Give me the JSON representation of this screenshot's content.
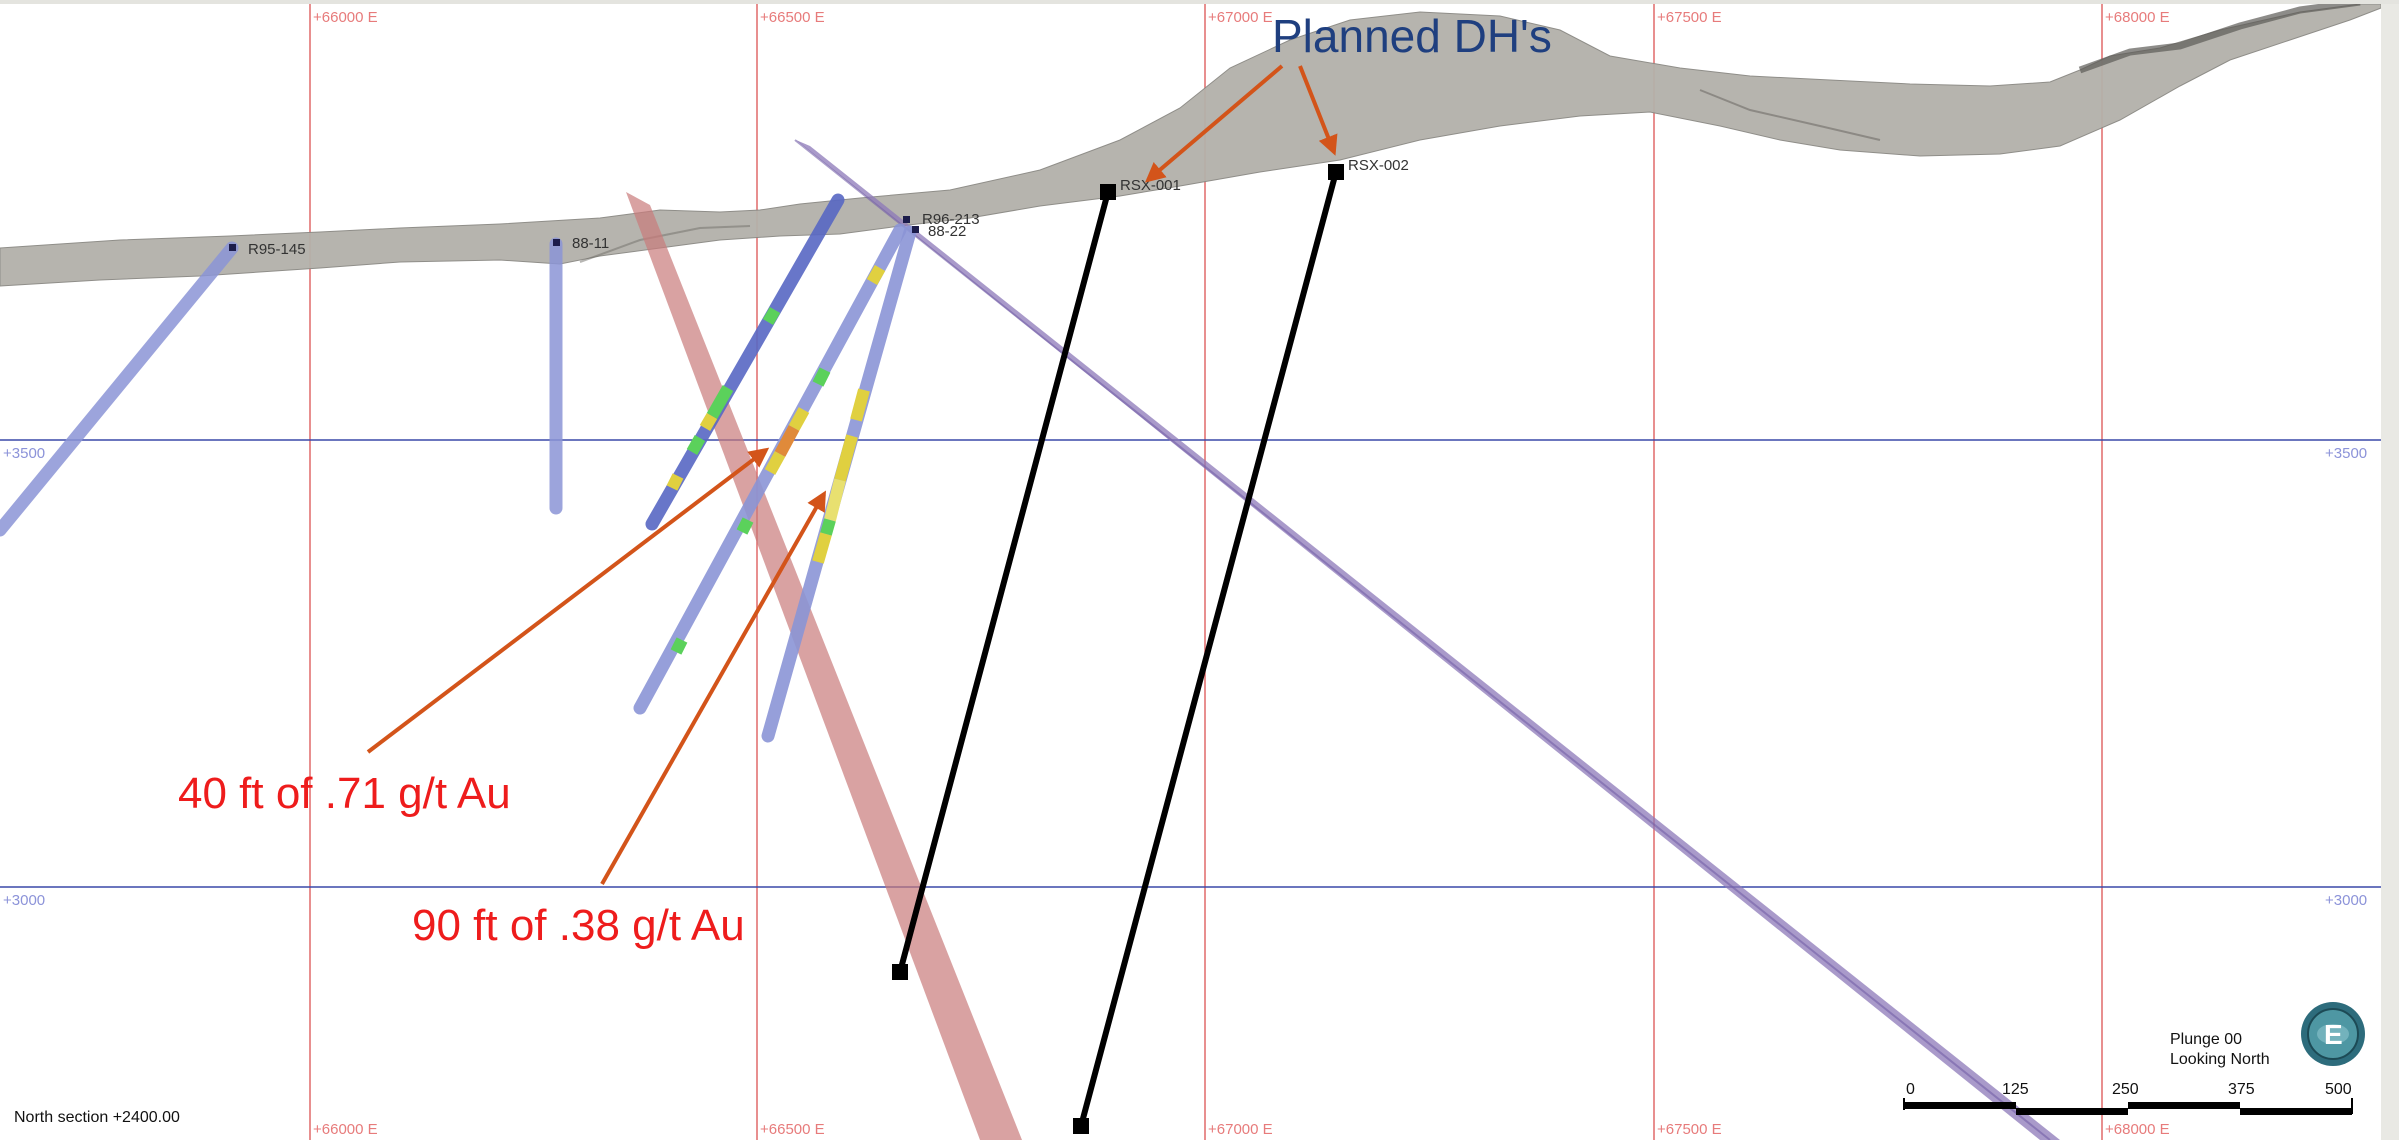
{
  "section_label": "North section +2400.00",
  "grid": {
    "easting_top": [
      "+66000 E",
      "+66500 E",
      "+67000 E",
      "+67500 E",
      "+68000 E"
    ],
    "easting_bottom": [
      "+66000 E",
      "+66500 E",
      "+67000 E",
      "+67500 E",
      "+68000 E"
    ],
    "elevation_left": [
      "+3500",
      "+3000"
    ],
    "elevation_right": [
      "+3500",
      "+3000"
    ]
  },
  "drillholes": {
    "existing": [
      "R95-145",
      "88-11",
      "R96-213",
      "88-22"
    ],
    "planned": [
      "RSX-001",
      "RSX-002"
    ]
  },
  "annotations": {
    "planned_title": "Planned DH's",
    "intercept_1": "40 ft of .71 g/t Au",
    "intercept_2": "90 ft of .38 g/t Au"
  },
  "view": {
    "plunge": "Plunge 00",
    "direction": "Looking North",
    "compass_letter": "E"
  },
  "scale_bar": {
    "ticks": [
      "0",
      "125",
      "250",
      "375",
      "500"
    ]
  },
  "colors": {
    "grid_vertical": "#e06a6a",
    "grid_horizontal": "#3a48a8",
    "terrain": "#b3b1aa",
    "drillhole_existing": "#8b95d6",
    "planned_hole": "#000000",
    "fault_red": "#c97b7b",
    "fault_purple": "#8c78b8",
    "annotation_red": "#ee1c1c",
    "annotation_arrow": "#d3541a",
    "title_blue": "#1f3f7f"
  }
}
